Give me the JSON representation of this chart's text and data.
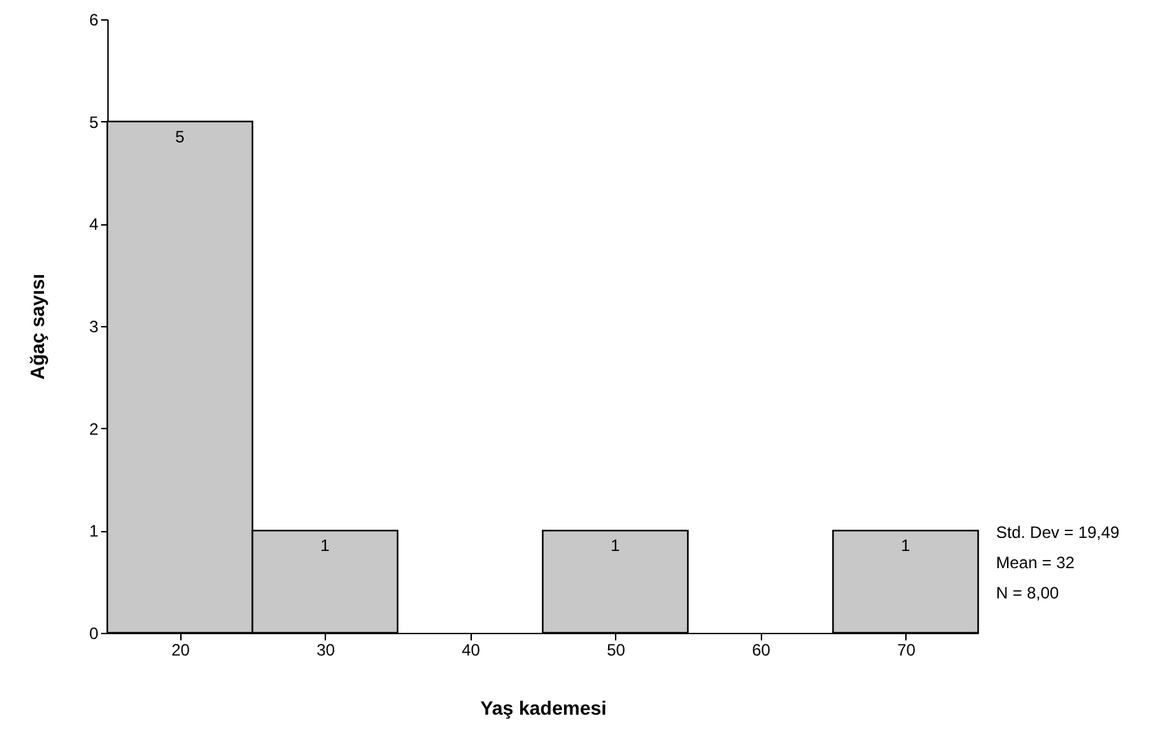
{
  "chart_data": {
    "type": "histogram",
    "xlabel": "Yaş kademesi",
    "ylabel": "Ağaç sayısı",
    "bins": [
      15,
      25,
      35,
      45,
      55,
      65,
      75
    ],
    "values": [
      5,
      1,
      0,
      1,
      0,
      1
    ],
    "value_labels": [
      "5",
      "1",
      null,
      "1",
      null,
      "1"
    ],
    "color": "#c8c8c8",
    "xlim": [
      15,
      75
    ],
    "xticks": [
      20,
      30,
      40,
      50,
      60,
      70
    ],
    "ylim": [
      0,
      6
    ],
    "yticks": [
      0,
      1,
      2,
      3,
      4,
      5,
      6
    ],
    "annotations": [
      "Std. Dev = 19,49",
      "Mean = 32",
      "N = 8,00"
    ]
  }
}
